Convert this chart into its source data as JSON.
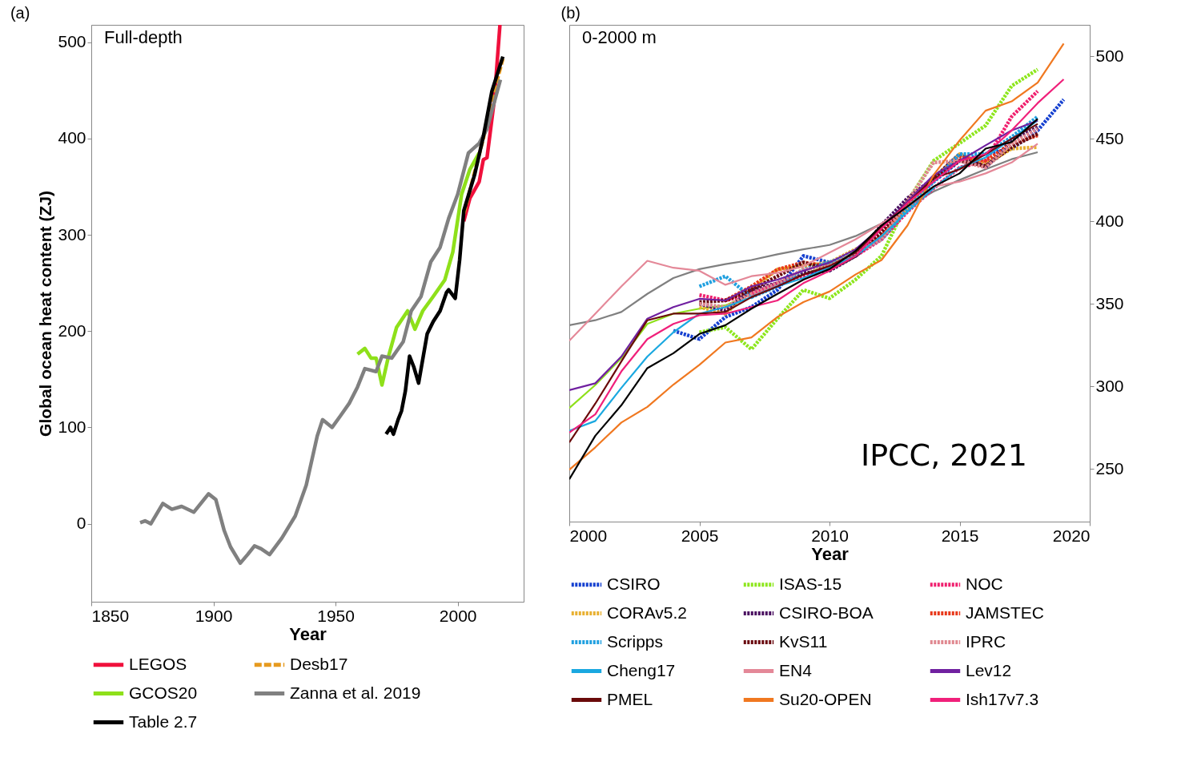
{
  "chart_data": [
    {
      "type": "line",
      "title": "(a)",
      "xlabel": "Year",
      "ylabel": "Global ocean heat content (ZJ)",
      "annotations": [
        "Full-depth"
      ],
      "xlim": [
        1850,
        2027
      ],
      "xticks": [
        1850,
        1900,
        1950,
        2000
      ],
      "ylim": [
        -81,
        518
      ],
      "yticks": [
        0,
        100,
        200,
        300,
        400,
        500
      ],
      "grid": false,
      "legend": "bottom",
      "series": [
        {
          "name": "LEGOS",
          "color": "#f0103c",
          "line_style": "solid",
          "x": [
            2002.5,
            2005,
            2008.8,
            2010.5,
            2012,
            2015,
            2017.3
          ],
          "values": [
            314,
            338,
            355,
            378,
            380,
            440,
            518
          ]
        },
        {
          "name": "Desb17",
          "color": "#e69a1e",
          "line_style": "dashed",
          "x": [
            2002.5,
            2005,
            2010.5,
            2015,
            2018.5
          ],
          "values": [
            322,
            346,
            400,
            449,
            483
          ]
        },
        {
          "name": "GCOS20",
          "color": "#8ee01a",
          "line_style": "solid",
          "x": [
            1959,
            1962,
            1964.5,
            1966.6,
            1969,
            1971.5,
            1975,
            1979.5,
            1982.5,
            1985.7,
            1990,
            1994.7,
            1998,
            2001.6,
            2005,
            2008.8
          ],
          "values": [
            176,
            182,
            172,
            172,
            144,
            172,
            204,
            221,
            202,
            221,
            236,
            253,
            282,
            342,
            368,
            385
          ]
        },
        {
          "name": "Zanna et al. 2019",
          "color": "#808080",
          "line_style": "solid",
          "x": [
            1870,
            1872,
            1874.4,
            1879.3,
            1883,
            1887,
            1892,
            1898,
            1901,
            1904.4,
            1907,
            1911,
            1914,
            1916.8,
            1919.5,
            1923,
            1928,
            1933.5,
            1938,
            1942.5,
            1944.7,
            1948.6,
            1952,
            1955.6,
            1959,
            1962,
            1966.6,
            1969,
            1973,
            1977.7,
            1981,
            1985,
            1989,
            1992.8,
            1996.3,
            2000,
            2004.4,
            2008.8,
            2012,
            2017.5
          ],
          "values": [
            1,
            3,
            0,
            21,
            15,
            18,
            12,
            31,
            25,
            -7,
            -24,
            -41,
            -32,
            -23,
            -26,
            -32,
            -15,
            8,
            40,
            91,
            108,
            100,
            112,
            125,
            142,
            161,
            158,
            174,
            172,
            189,
            221,
            236,
            272,
            287,
            317,
            342,
            385,
            395,
            410,
            461
          ]
        },
        {
          "name": "Table 2.7",
          "color": "#000000",
          "line_style": "solid",
          "x": [
            1970.7,
            1972.5,
            1973.7,
            1975.6,
            1977,
            1978.6,
            1980.3,
            1982,
            1984,
            1987.5,
            1990,
            1992.8,
            1995.4,
            1996.3,
            1999,
            2000.8,
            2002.5,
            2007,
            2010.5,
            2014,
            2018.5
          ],
          "values": [
            93,
            100,
            93,
            108,
            117,
            138,
            174,
            163,
            146,
            197,
            210,
            221,
            240,
            243,
            234,
            274,
            325,
            363,
            402,
            449,
            485
          ]
        }
      ]
    },
    {
      "type": "line",
      "title": "(b)",
      "xlabel": "Year",
      "annotations": [
        "0-2000 m",
        "IPCC, 2021"
      ],
      "xlim": [
        2000,
        2020
      ],
      "xticks": [
        2000,
        2005,
        2010,
        2015,
        2020
      ],
      "y2lim": [
        218,
        519
      ],
      "y2ticks": [
        250,
        300,
        350,
        400,
        450,
        500
      ],
      "grid": false,
      "legend": "bottom",
      "x": [
        2000,
        2001,
        2002,
        2003,
        2004,
        2005,
        2006,
        2007,
        2008,
        2009,
        2010,
        2011,
        2012,
        2013,
        2014,
        2015,
        2016,
        2017,
        2018,
        2019
      ],
      "series": [
        {
          "color": "#808080",
          "axis": "y2",
          "line_style": "solid",
          "values": [
            337,
            340,
            345,
            356,
            365.6,
            371,
            374,
            376.5,
            380,
            383,
            385.6,
            391,
            398.6,
            409,
            418,
            425,
            431.5,
            437.6,
            441.8,
            null
          ]
        },
        {
          "color": "#8ee01a",
          "axis": "y2",
          "line_style": "solid",
          "values": [
            286.8,
            300.8,
            317,
            337.8,
            344,
            347,
            349,
            356,
            362.5,
            367.7,
            374,
            381,
            395.5,
            null,
            null,
            null,
            null,
            null,
            null,
            null
          ]
        },
        {
          "name": "CSIRO",
          "color": "#1540d0",
          "axis": "y2",
          "line_style": "dotted",
          "values": [
            null,
            null,
            null,
            null,
            333.7,
            328.6,
            342,
            348,
            358.4,
            379,
            375,
            379,
            391,
            409,
            424,
            436.6,
            440.7,
            444,
            455,
            473.7
          ]
        },
        {
          "name": "ISAS-15",
          "color": "#8ee61e",
          "axis": "y2",
          "line_style": "dotted",
          "values": [
            null,
            null,
            null,
            null,
            null,
            332.7,
            335.8,
            322.4,
            341,
            358.4,
            353.3,
            364.6,
            379,
            412,
            436.6,
            447.3,
            458,
            482,
            492,
            null
          ]
        },
        {
          "name": "NOC",
          "color": "#f0206e",
          "axis": "y2",
          "line_style": "dotted",
          "values": [
            null,
            null,
            null,
            null,
            null,
            355.3,
            352,
            356,
            362.5,
            366.7,
            372.8,
            379,
            389,
            405.8,
            420,
            432.5,
            436.6,
            463.4,
            478.8,
            null
          ]
        },
        {
          "name": "CORAv5.2",
          "color": "#e8b030",
          "axis": "y2",
          "line_style": "dotted",
          "values": [
            null,
            null,
            null,
            null,
            null,
            348,
            344,
            358.4,
            370.8,
            372.8,
            375,
            383,
            391,
            407.8,
            426,
            440.7,
            434.6,
            444,
            444.9,
            null
          ]
        },
        {
          "name": "CSIRO-BOA",
          "color": "#4a1060",
          "axis": "y2",
          "line_style": "dotted",
          "values": [
            null,
            null,
            null,
            null,
            null,
            350,
            346,
            358.4,
            362.5,
            368.7,
            370,
            379,
            397.5,
            414,
            426,
            440.7,
            432.5,
            449,
            457,
            null
          ]
        },
        {
          "name": "JAMSTEC",
          "color": "#e8381a",
          "axis": "y2",
          "line_style": "dotted",
          "values": [
            null,
            null,
            null,
            null,
            null,
            null,
            352,
            360.5,
            370.8,
            375,
            372.8,
            381,
            391,
            410,
            426,
            438.7,
            436.6,
            447,
            452,
            null
          ]
        },
        {
          "name": "Scripps",
          "color": "#20a0e0",
          "axis": "y2",
          "line_style": "dotted",
          "values": [
            null,
            null,
            null,
            null,
            null,
            360.5,
            366.7,
            354,
            360.5,
            370.8,
            375,
            381,
            389,
            407.8,
            424,
            440.7,
            440.7,
            451,
            463.4,
            null
          ]
        },
        {
          "name": "KvS11",
          "color": "#6a0a10",
          "axis": "y2",
          "line_style": "dotted",
          "values": [
            null,
            null,
            null,
            null,
            null,
            351,
            352,
            358.4,
            366.7,
            375,
            370.8,
            379,
            393.4,
            412,
            426,
            436.6,
            433.5,
            445,
            453,
            null
          ]
        },
        {
          "name": "IPRC",
          "color": "#e08890",
          "axis": "y2",
          "line_style": "dotted",
          "values": [
            null,
            null,
            null,
            null,
            null,
            350,
            348,
            356,
            362.5,
            370.8,
            372.8,
            381,
            389,
            412,
            435.6,
            436.6,
            432.5,
            447,
            456,
            null
          ]
        },
        {
          "name": "Cheng17",
          "color": "#1aa8e0",
          "axis": "y2",
          "line_style": "solid",
          "values": [
            273,
            279,
            299,
            318,
            332.7,
            344,
            348,
            354,
            360.5,
            365.6,
            372,
            379,
            391,
            405.8,
            420,
            432.5,
            438.7,
            450,
            461,
            null
          ]
        },
        {
          "name": "EN4",
          "color": "#e48898",
          "axis": "y2",
          "line_style": "solid",
          "values": [
            327.6,
            344,
            360.5,
            376,
            371.8,
            370,
            361.5,
            366.7,
            368.7,
            372.8,
            381,
            389,
            398.6,
            409,
            421,
            424,
            429,
            435.6,
            447,
            null
          ]
        },
        {
          "name": "Lev12",
          "color": "#7020a0",
          "axis": "y2",
          "line_style": "solid",
          "values": [
            297.7,
            301.8,
            318,
            341,
            348,
            353,
            352,
            360.5,
            364.6,
            370,
            375,
            383,
            396.5,
            412,
            428,
            436.6,
            446,
            455,
            461,
            null
          ]
        },
        {
          "name": "PMEL",
          "color": "#6a0a0a",
          "axis": "y2",
          "line_style": "solid",
          "values": [
            266,
            289.5,
            315,
            340,
            344,
            344,
            345,
            354,
            360.5,
            367.7,
            372.8,
            381,
            396.5,
            411,
            426,
            431.5,
            440.7,
            450,
            459,
            null
          ]
        },
        {
          "name": "Su20-OPEN",
          "color": "#f07820",
          "axis": "y2",
          "line_style": "solid",
          "values": [
            249.4,
            263,
            278,
            287.5,
            301,
            313,
            326.5,
            329.6,
            342,
            351,
            357.4,
            367.7,
            376.5,
            397.5,
            428,
            449,
            467,
            472.6,
            484,
            507.6
          ]
        },
        {
          "name": "Ish17v7.3",
          "color": "#f0207a",
          "axis": "y2",
          "line_style": "solid",
          "values": [
            272,
            283,
            309,
            328.6,
            337.8,
            343,
            344,
            348,
            352,
            362.5,
            370,
            379,
            395.5,
            411,
            424,
            436.6,
            440.7,
            455,
            471.6,
            486
          ]
        },
        {
          "color": "#000000",
          "axis": "y2",
          "line_style": "solid",
          "values": [
            243.6,
            270,
            288.5,
            311,
            320,
            331.7,
            337,
            347,
            356,
            364.6,
            371,
            382,
            397.5,
            409,
            421,
            429,
            444,
            448,
            462,
            null
          ]
        }
      ]
    }
  ]
}
